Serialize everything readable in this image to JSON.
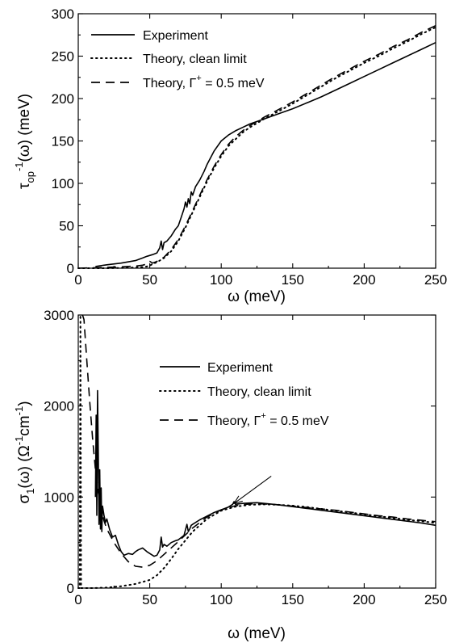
{
  "chart_data": [
    {
      "type": "line",
      "xlabel": "ω (meV)",
      "ylabel_main": "τ",
      "ylabel_sub": "op",
      "ylabel_sup": "-1",
      "ylabel_rest": "(ω) (meV)",
      "xlim": [
        0,
        250
      ],
      "ylim": [
        0,
        300
      ],
      "xticks": [
        0,
        50,
        100,
        150,
        200,
        250
      ],
      "yticks": [
        0,
        50,
        100,
        150,
        200,
        250,
        300
      ],
      "x_tick_labels": [
        "0",
        "50",
        "100",
        "150",
        "200",
        "250"
      ],
      "y_tick_labels": [
        "0",
        "50",
        "100",
        "150",
        "200",
        "250",
        "300"
      ],
      "legend_placement": "top-left",
      "series": [
        {
          "name": "Experiment",
          "style": "solid",
          "x": [
            12,
            20,
            30,
            40,
            45,
            48,
            52,
            55,
            57,
            58,
            59,
            60,
            62,
            65,
            68,
            70,
            72,
            74,
            75,
            76,
            77,
            78,
            79,
            80,
            82,
            85,
            88,
            90,
            95,
            100,
            105,
            110,
            115,
            120,
            130,
            140,
            150,
            160,
            170,
            180,
            190,
            200,
            210,
            220,
            230,
            240,
            250
          ],
          "y": [
            2,
            4,
            6,
            9,
            12,
            14,
            16,
            18,
            24,
            32,
            22,
            30,
            32,
            38,
            46,
            50,
            60,
            70,
            78,
            72,
            82,
            76,
            90,
            86,
            96,
            104,
            114,
            122,
            138,
            150,
            157,
            162,
            166,
            170,
            176,
            182,
            188,
            195,
            202,
            210,
            218,
            226,
            234,
            242,
            250,
            258,
            266
          ]
        },
        {
          "name": "Theory, clean limit",
          "style": "dotted",
          "x": [
            0,
            10,
            20,
            30,
            40,
            45,
            48,
            50,
            52,
            55,
            60,
            65,
            70,
            75,
            80,
            85,
            90,
            95,
            100,
            105,
            110,
            115,
            120,
            125,
            130,
            140,
            150,
            160,
            170,
            180,
            190,
            200,
            210,
            220,
            230,
            240,
            250
          ],
          "y": [
            0,
            0,
            0,
            0.3,
            0.8,
            1.2,
            2,
            3,
            5,
            7,
            12,
            20,
            32,
            48,
            66,
            84,
            102,
            118,
            132,
            144,
            152,
            160,
            166,
            171,
            176,
            185,
            194,
            204,
            214,
            224,
            233,
            242,
            250,
            259,
            267,
            276,
            284
          ]
        },
        {
          "name": "Theory, Γ+ = 0.5 meV",
          "style": "dashed",
          "x": [
            0,
            10,
            20,
            30,
            40,
            45,
            48,
            50,
            52,
            55,
            60,
            65,
            70,
            75,
            80,
            85,
            90,
            95,
            100,
            105,
            110,
            115,
            120,
            125,
            130,
            140,
            150,
            160,
            170,
            180,
            190,
            200,
            210,
            220,
            230,
            240,
            250
          ],
          "y": [
            0,
            0.5,
            1,
            1.5,
            2.5,
            3.5,
            5,
            8,
            6,
            8,
            13,
            22,
            34,
            50,
            68,
            86,
            104,
            120,
            134,
            146,
            155,
            162,
            168,
            173,
            178,
            187,
            196,
            206,
            216,
            226,
            235,
            244,
            252,
            261,
            269,
            278,
            286
          ]
        }
      ]
    },
    {
      "type": "line",
      "xlabel": "ω (meV)",
      "ylabel_main": "σ",
      "ylabel_sub": "1",
      "ylabel_rest1": "(ω) (Ω",
      "ylabel_sup1": "-1",
      "ylabel_rest2": "cm",
      "ylabel_sup2": "-1",
      "ylabel_rest3": ")",
      "xlim": [
        0,
        250
      ],
      "ylim": [
        0,
        3000
      ],
      "xticks": [
        0,
        50,
        100,
        150,
        200,
        250
      ],
      "yticks": [
        0,
        1000,
        2000,
        3000
      ],
      "x_tick_labels": [
        "0",
        "50",
        "100",
        "150",
        "200",
        "250"
      ],
      "y_tick_labels": [
        "0",
        "1000",
        "2000",
        "3000"
      ],
      "legend_placement": "top-right",
      "annotations": [
        {
          "type": "arrow",
          "from": [
            135,
            1230
          ],
          "to": [
            109,
            930
          ]
        }
      ],
      "series": [
        {
          "name": "Experiment",
          "style": "solid",
          "x": [
            12,
            12.5,
            13,
            13.5,
            14,
            14.5,
            15,
            15.5,
            16,
            16.5,
            17,
            18,
            19,
            20,
            22,
            24,
            26,
            28,
            30,
            32,
            35,
            38,
            40,
            42,
            45,
            48,
            50,
            53,
            55,
            57,
            58,
            59,
            60,
            62,
            65,
            68,
            70,
            74,
            76,
            77,
            78,
            79,
            80,
            85,
            90,
            95,
            100,
            105,
            108,
            109,
            110,
            112,
            115,
            120,
            125,
            130,
            140,
            150,
            160,
            170,
            180,
            190,
            200,
            210,
            220,
            230,
            240,
            250
          ],
          "y": [
            1000,
            1900,
            800,
            2170,
            1500,
            700,
            1300,
            650,
            1100,
            620,
            900,
            800,
            720,
            760,
            640,
            560,
            580,
            480,
            400,
            360,
            380,
            370,
            400,
            420,
            440,
            400,
            380,
            350,
            360,
            420,
            560,
            450,
            480,
            460,
            500,
            520,
            530,
            580,
            700,
            620,
            650,
            690,
            700,
            750,
            790,
            830,
            860,
            890,
            920,
            950,
            920,
            925,
            930,
            935,
            938,
            930,
            915,
            895,
            875,
            855,
            835,
            815,
            795,
            775,
            755,
            735,
            715,
            690
          ]
        },
        {
          "name": "Theory, clean limit",
          "style": "dotted",
          "x": [
            0,
            1,
            1.5,
            2,
            5,
            10,
            20,
            30,
            40,
            50,
            55,
            60,
            65,
            70,
            80,
            90,
            100,
            110,
            120,
            130,
            140,
            150,
            160,
            170,
            180,
            190,
            200,
            210,
            220,
            230,
            240,
            250
          ],
          "y": [
            0,
            0,
            3000,
            0,
            0,
            0,
            5,
            20,
            45,
            90,
            140,
            220,
            320,
            430,
            620,
            760,
            850,
            895,
            915,
            920,
            915,
            905,
            890,
            870,
            850,
            830,
            810,
            790,
            770,
            750,
            735,
            715
          ]
        },
        {
          "name": "Theory, Γ+ = 0.5 meV",
          "style": "dashed",
          "x": [
            3,
            4,
            6,
            8,
            10,
            12,
            14,
            16,
            18,
            20,
            25,
            30,
            35,
            40,
            45,
            50,
            55,
            60,
            70,
            80,
            90,
            100,
            110,
            120,
            130,
            140,
            150,
            160,
            170,
            180,
            190,
            200,
            210,
            220,
            230,
            240,
            250
          ],
          "y": [
            3000,
            2950,
            2500,
            2050,
            1650,
            1300,
            1050,
            870,
            740,
            650,
            500,
            380,
            290,
            240,
            230,
            250,
            300,
            370,
            510,
            660,
            780,
            860,
            905,
            925,
            925,
            915,
            900,
            885,
            870,
            855,
            835,
            815,
            795,
            780,
            760,
            745,
            730
          ]
        }
      ]
    }
  ]
}
